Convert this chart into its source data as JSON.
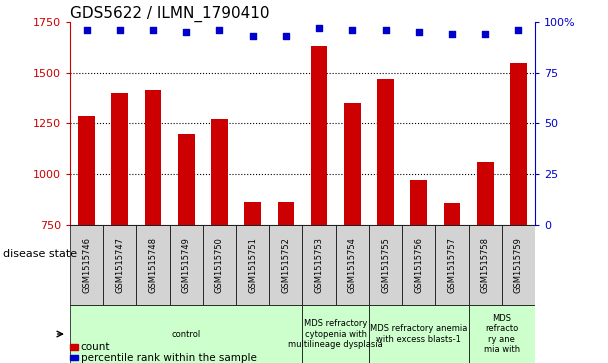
{
  "title": "GDS5622 / ILMN_1790410",
  "samples": [
    "GSM1515746",
    "GSM1515747",
    "GSM1515748",
    "GSM1515749",
    "GSM1515750",
    "GSM1515751",
    "GSM1515752",
    "GSM1515753",
    "GSM1515754",
    "GSM1515755",
    "GSM1515756",
    "GSM1515757",
    "GSM1515758",
    "GSM1515759"
  ],
  "counts": [
    1285,
    1400,
    1415,
    1200,
    1270,
    865,
    865,
    1630,
    1350,
    1470,
    970,
    860,
    1060,
    1545
  ],
  "percentiles": [
    96,
    96,
    96,
    95,
    96,
    93,
    93,
    97,
    96,
    96,
    95,
    94,
    94,
    96
  ],
  "ylim_left": [
    750,
    1750
  ],
  "ylim_right": [
    0,
    100
  ],
  "yticks_left": [
    750,
    1000,
    1250,
    1500,
    1750
  ],
  "yticks_right": [
    0,
    25,
    50,
    75,
    100
  ],
  "bar_color": "#cc0000",
  "dot_color": "#0000cc",
  "background_color": "#ffffff",
  "disease_groups": [
    {
      "label": "control",
      "start": 0,
      "end": 7,
      "color": "#ccffcc"
    },
    {
      "label": "MDS refractory\ncytopenia with\nmultilineage dysplasia",
      "start": 7,
      "end": 9,
      "color": "#ccffcc"
    },
    {
      "label": "MDS refractory anemia\nwith excess blasts-1",
      "start": 9,
      "end": 12,
      "color": "#ccffcc"
    },
    {
      "label": "MDS\nrefracto\nry ane\nmia with",
      "start": 12,
      "end": 14,
      "color": "#ccffcc"
    }
  ],
  "disease_state_label": "disease state",
  "legend_count_label": "count",
  "legend_percentile_label": "percentile rank within the sample",
  "title_fontsize": 11,
  "tick_fontsize": 8,
  "sample_fontsize": 6,
  "disease_fontsize": 6,
  "legend_fontsize": 7.5,
  "bar_width": 0.5,
  "gray_bg": "#d3d3d3"
}
